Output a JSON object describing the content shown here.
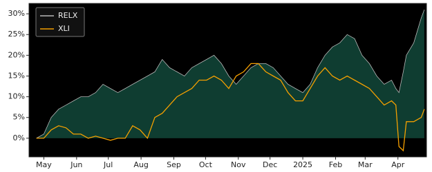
{
  "chart_data": {
    "type": "line",
    "x": [
      -7,
      0,
      7,
      14,
      21,
      28,
      35,
      42,
      49,
      56,
      63,
      70,
      77,
      84,
      91,
      98,
      105,
      112,
      119,
      126,
      133,
      140,
      147,
      154,
      161,
      168,
      175,
      182,
      189,
      196,
      203,
      210,
      217,
      224,
      231,
      238,
      245,
      252,
      259,
      266,
      273,
      280,
      287,
      294,
      301,
      308,
      315,
      322,
      329,
      333,
      336,
      340,
      343,
      350,
      357,
      360
    ],
    "series": [
      {
        "name": "RELX",
        "color": "#b8b8b8",
        "fill_color": "#0f3d31",
        "values": [
          0,
          1,
          5,
          7,
          8,
          9,
          10,
          10,
          11,
          13,
          12,
          11,
          12,
          13,
          14,
          15,
          16,
          19,
          17,
          16,
          15,
          17,
          18,
          19,
          20,
          18,
          15,
          13,
          15,
          17,
          18,
          18,
          17,
          15,
          13,
          12,
          11,
          13,
          17,
          20,
          22,
          23,
          25,
          24,
          20,
          18,
          15,
          13,
          14,
          12,
          11,
          16,
          20,
          23,
          29,
          31
        ]
      },
      {
        "name": "XLI",
        "color": "#f5a000",
        "values": [
          0,
          0,
          2,
          3,
          2.5,
          1,
          1,
          0,
          0.5,
          0,
          -0.5,
          0,
          0,
          3,
          2,
          0,
          5,
          6,
          8,
          10,
          11,
          12,
          14,
          14,
          15,
          14,
          12,
          15,
          16,
          18,
          18,
          16,
          15,
          14,
          11,
          9,
          9,
          12,
          15,
          17,
          15,
          14,
          15,
          14,
          13,
          12,
          10,
          8,
          9,
          8,
          -2,
          -3,
          4,
          4,
          5,
          7
        ]
      }
    ],
    "xlim": [
      -14,
      362
    ],
    "xticks": [
      {
        "value": 0,
        "label": "May"
      },
      {
        "value": 31,
        "label": "Jun"
      },
      {
        "value": 61,
        "label": "Jul"
      },
      {
        "value": 92,
        "label": "Aug"
      },
      {
        "value": 123,
        "label": "Sep"
      },
      {
        "value": 153,
        "label": "Oct"
      },
      {
        "value": 184,
        "label": "Nov"
      },
      {
        "value": 214,
        "label": "Dec"
      },
      {
        "value": 245,
        "label": "2025"
      },
      {
        "value": 276,
        "label": "Feb"
      },
      {
        "value": 304,
        "label": "Mar"
      },
      {
        "value": 335,
        "label": "Apr"
      }
    ],
    "ylim": [
      -4.5,
      32.5
    ],
    "yticks": [
      {
        "value": 0,
        "label": "0%"
      },
      {
        "value": 5,
        "label": "5%"
      },
      {
        "value": 10,
        "label": "10%"
      },
      {
        "value": 15,
        "label": "15%"
      },
      {
        "value": 20,
        "label": "20%"
      },
      {
        "value": 25,
        "label": "25%"
      },
      {
        "value": 30,
        "label": "30%"
      }
    ],
    "legend": "upper left",
    "background": "#000000"
  }
}
